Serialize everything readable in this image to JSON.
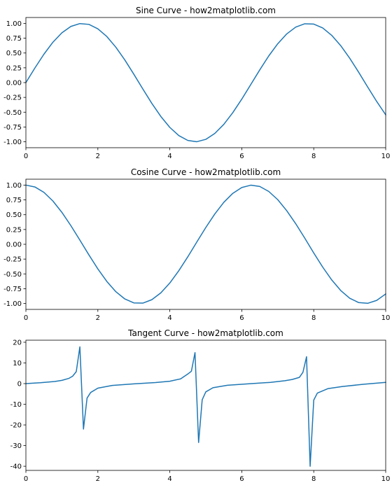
{
  "figure": {
    "background": "#ffffff"
  },
  "chart_data": [
    {
      "type": "line",
      "title": "Sine Curve - how2matplotlib.com",
      "xlabel": "",
      "ylabel": "",
      "xlim": [
        0,
        10
      ],
      "ylim": [
        -1.1,
        1.1
      ],
      "xticks": [
        0,
        2,
        4,
        6,
        8,
        10
      ],
      "xtick_labels": [
        "0",
        "2",
        "4",
        "6",
        "8",
        "10"
      ],
      "yticks": [
        -1.0,
        -0.75,
        -0.5,
        -0.25,
        0.0,
        0.25,
        0.5,
        0.75,
        1.0
      ],
      "ytick_labels": [
        "-1.00",
        "-0.75",
        "-0.50",
        "-0.25",
        "0.00",
        "0.25",
        "0.50",
        "0.75",
        "1.00"
      ],
      "grid": false,
      "series": [
        {
          "color": "#1f77b4",
          "x": [
            0,
            0.25,
            0.5,
            0.75,
            1.0,
            1.25,
            1.5,
            1.75,
            2.0,
            2.25,
            2.5,
            2.75,
            3.0,
            3.25,
            3.5,
            3.75,
            4.0,
            4.25,
            4.5,
            4.75,
            5.0,
            5.25,
            5.5,
            5.75,
            6.0,
            6.25,
            6.5,
            6.75,
            7.0,
            7.25,
            7.5,
            7.75,
            8.0,
            8.25,
            8.5,
            8.75,
            9.0,
            9.25,
            9.5,
            9.75,
            10.0
          ],
          "y": [
            0.0,
            0.247,
            0.479,
            0.682,
            0.841,
            0.949,
            0.997,
            0.984,
            0.909,
            0.778,
            0.598,
            0.382,
            0.141,
            -0.108,
            -0.351,
            -0.572,
            -0.757,
            -0.895,
            -0.977,
            -0.999,
            -0.959,
            -0.859,
            -0.706,
            -0.508,
            -0.279,
            -0.033,
            0.215,
            0.451,
            0.657,
            0.823,
            0.938,
            0.994,
            0.989,
            0.923,
            0.798,
            0.624,
            0.412,
            0.174,
            -0.075,
            -0.319,
            -0.544
          ]
        }
      ]
    },
    {
      "type": "line",
      "title": "Cosine Curve - how2matplotlib.com",
      "xlabel": "",
      "ylabel": "",
      "xlim": [
        0,
        10
      ],
      "ylim": [
        -1.1,
        1.1
      ],
      "xticks": [
        0,
        2,
        4,
        6,
        8,
        10
      ],
      "xtick_labels": [
        "0",
        "2",
        "4",
        "6",
        "8",
        "10"
      ],
      "yticks": [
        -1.0,
        -0.75,
        -0.5,
        -0.25,
        0.0,
        0.25,
        0.5,
        0.75,
        1.0
      ],
      "ytick_labels": [
        "-1.00",
        "-0.75",
        "-0.50",
        "-0.25",
        "0.00",
        "0.25",
        "0.50",
        "0.75",
        "1.00"
      ],
      "grid": false,
      "series": [
        {
          "color": "#1f77b4",
          "x": [
            0,
            0.25,
            0.5,
            0.75,
            1.0,
            1.25,
            1.5,
            1.75,
            2.0,
            2.25,
            2.5,
            2.75,
            3.0,
            3.25,
            3.5,
            3.75,
            4.0,
            4.25,
            4.5,
            4.75,
            5.0,
            5.25,
            5.5,
            5.75,
            6.0,
            6.25,
            6.5,
            6.75,
            7.0,
            7.25,
            7.5,
            7.75,
            8.0,
            8.25,
            8.5,
            8.75,
            9.0,
            9.25,
            9.5,
            9.75,
            10.0
          ],
          "y": [
            1.0,
            0.969,
            0.878,
            0.732,
            0.54,
            0.315,
            0.071,
            -0.178,
            -0.416,
            -0.628,
            -0.801,
            -0.924,
            -0.99,
            -0.994,
            -0.936,
            -0.821,
            -0.654,
            -0.446,
            -0.211,
            0.038,
            0.284,
            0.512,
            0.709,
            0.861,
            0.96,
            0.999,
            0.977,
            0.893,
            0.754,
            0.567,
            0.347,
            0.105,
            -0.146,
            -0.386,
            -0.602,
            -0.781,
            -0.911,
            -0.985,
            -0.997,
            -0.948,
            -0.839
          ]
        }
      ]
    },
    {
      "type": "line",
      "title": "Tangent Curve - how2matplotlib.com",
      "xlabel": "",
      "ylabel": "",
      "xlim": [
        0,
        10
      ],
      "ylim": [
        -42,
        21
      ],
      "xticks": [
        0,
        2,
        4,
        6,
        8,
        10
      ],
      "xtick_labels": [
        "0",
        "2",
        "4",
        "6",
        "8",
        "10"
      ],
      "yticks": [
        -40,
        -30,
        -20,
        -10,
        0,
        10,
        20
      ],
      "ytick_labels": [
        "-40",
        "-30",
        "-20",
        "-10",
        "0",
        "10",
        "20"
      ],
      "grid": false,
      "series": [
        {
          "color": "#1f77b4",
          "x": [
            0,
            0.4,
            0.8,
            1.0,
            1.2,
            1.3,
            1.4,
            1.5,
            1.6,
            1.7,
            1.8,
            2.0,
            2.4,
            3.0,
            3.6,
            4.0,
            4.3,
            4.5,
            4.6,
            4.7,
            4.8,
            4.9,
            5.0,
            5.2,
            5.6,
            6.2,
            6.8,
            7.2,
            7.4,
            7.6,
            7.7,
            7.8,
            7.9,
            8.0,
            8.1,
            8.4,
            8.8,
            9.4,
            10.0
          ],
          "y": [
            0.0,
            0.42,
            1.03,
            1.56,
            2.57,
            3.6,
            5.8,
            17.8,
            -22.0,
            -7.0,
            -4.3,
            -2.2,
            -0.9,
            -0.14,
            0.49,
            1.16,
            2.28,
            4.64,
            6.0,
            15.0,
            -28.5,
            -7.8,
            -4.0,
            -2.0,
            -0.8,
            -0.08,
            0.6,
            1.4,
            2.0,
            3.0,
            5.5,
            13.0,
            -40.0,
            -8.0,
            -4.6,
            -2.4,
            -1.4,
            -0.3,
            0.6
          ]
        }
      ]
    }
  ]
}
